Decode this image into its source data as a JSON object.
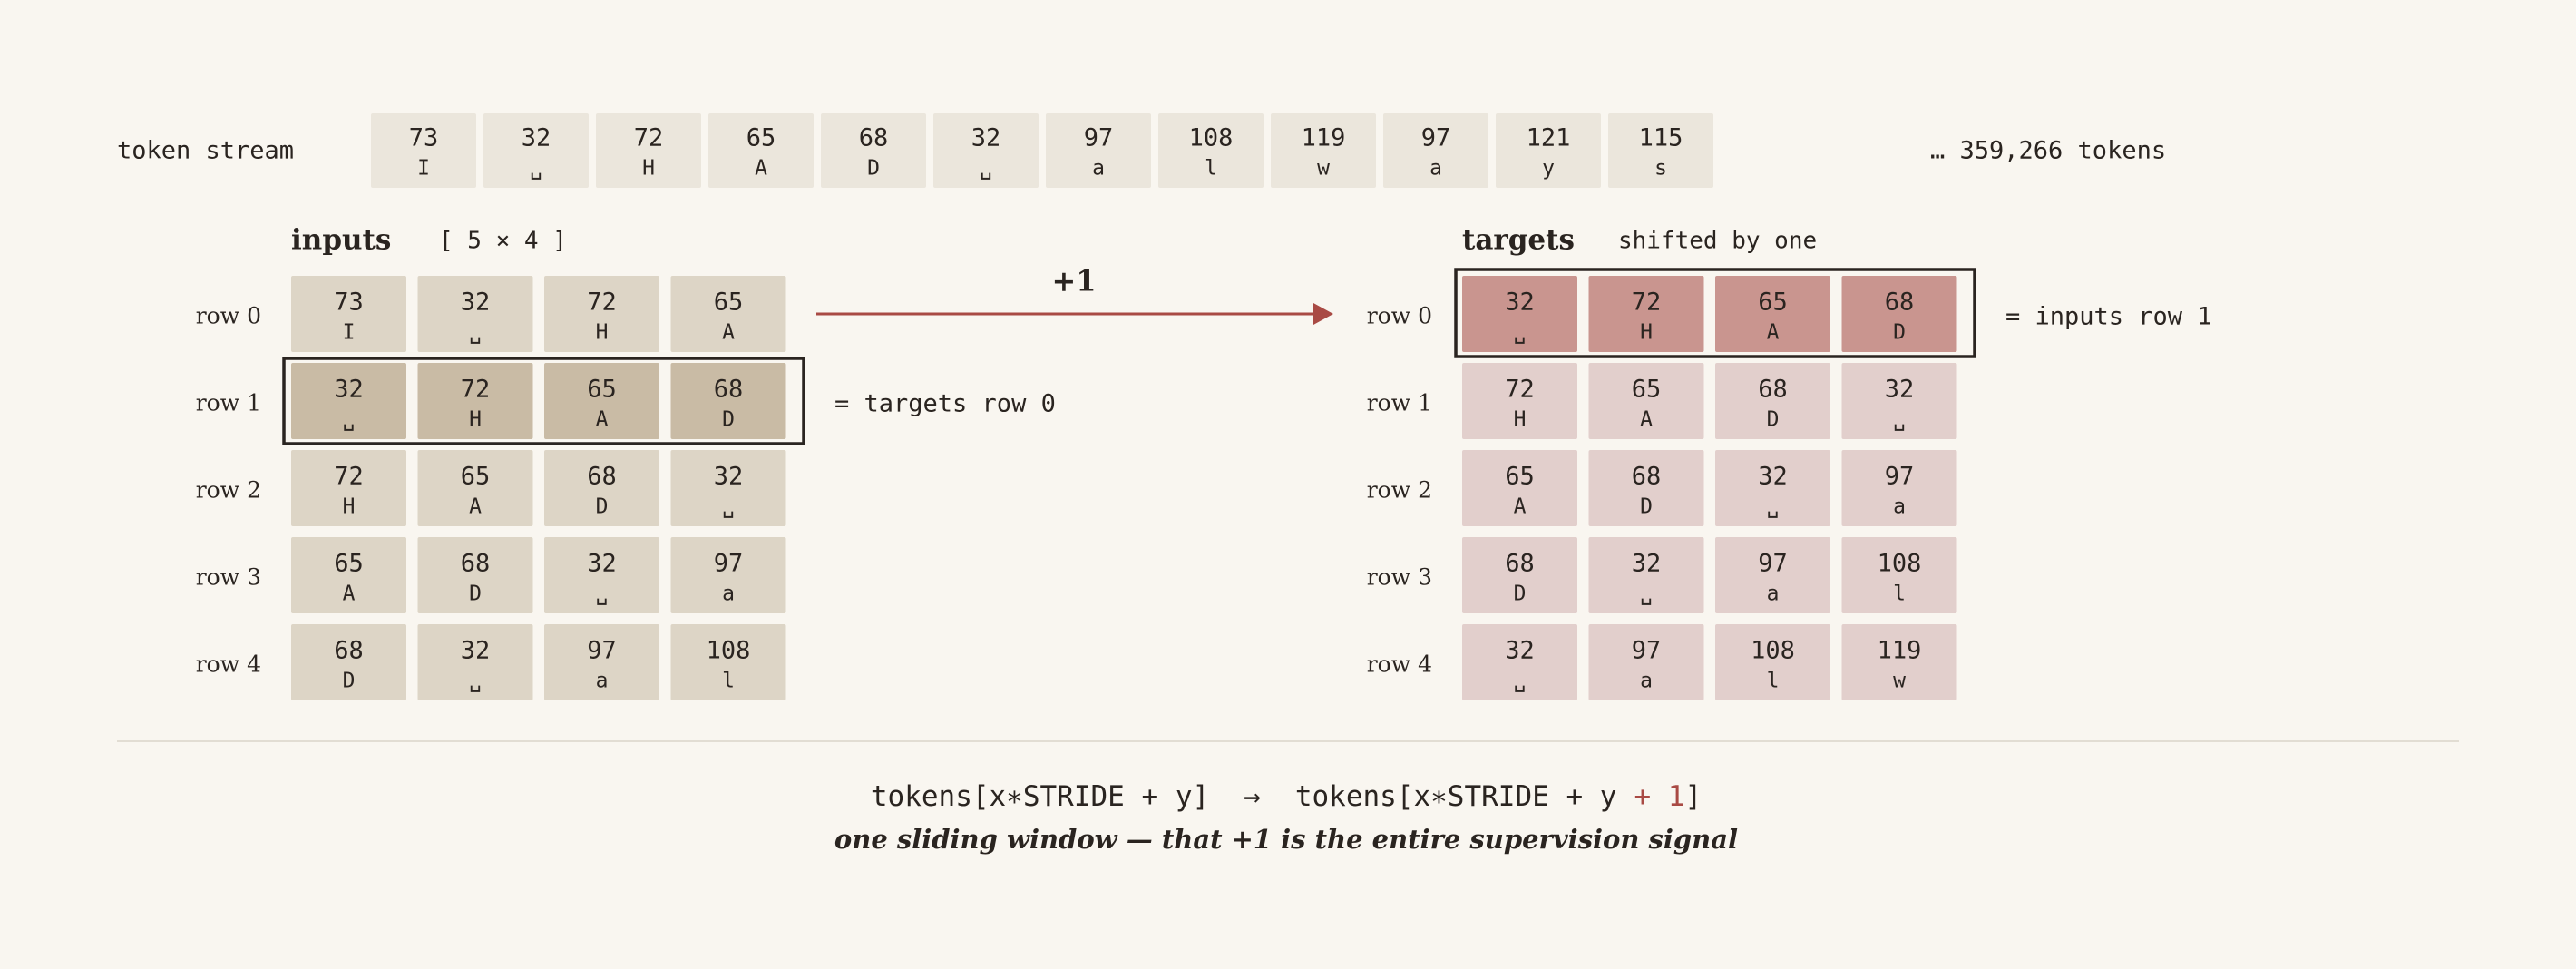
{
  "token_stream": {
    "label": "token stream",
    "tokens": [
      {
        "id": "73",
        "char": "I"
      },
      {
        "id": "32",
        "char": "␣"
      },
      {
        "id": "72",
        "char": "H"
      },
      {
        "id": "65",
        "char": "A"
      },
      {
        "id": "68",
        "char": "D"
      },
      {
        "id": "32",
        "char": "␣"
      },
      {
        "id": "97",
        "char": "a"
      },
      {
        "id": "108",
        "char": "l"
      },
      {
        "id": "119",
        "char": "w"
      },
      {
        "id": "97",
        "char": "a"
      },
      {
        "id": "121",
        "char": "y"
      },
      {
        "id": "115",
        "char": "s"
      }
    ],
    "more": "… 359,266 tokens"
  },
  "inputs": {
    "title": "inputs",
    "shape": "[ 5 × 4 ]",
    "note": "= targets row 0",
    "rows": [
      {
        "label": "row 0",
        "cells": [
          {
            "id": "73",
            "char": "I"
          },
          {
            "id": "32",
            "char": "␣"
          },
          {
            "id": "72",
            "char": "H"
          },
          {
            "id": "65",
            "char": "A"
          }
        ]
      },
      {
        "label": "row 1",
        "cells": [
          {
            "id": "32",
            "char": "␣"
          },
          {
            "id": "72",
            "char": "H"
          },
          {
            "id": "65",
            "char": "A"
          },
          {
            "id": "68",
            "char": "D"
          }
        ]
      },
      {
        "label": "row 2",
        "cells": [
          {
            "id": "72",
            "char": "H"
          },
          {
            "id": "65",
            "char": "A"
          },
          {
            "id": "68",
            "char": "D"
          },
          {
            "id": "32",
            "char": "␣"
          }
        ]
      },
      {
        "label": "row 3",
        "cells": [
          {
            "id": "65",
            "char": "A"
          },
          {
            "id": "68",
            "char": "D"
          },
          {
            "id": "32",
            "char": "␣"
          },
          {
            "id": "97",
            "char": "a"
          }
        ]
      },
      {
        "label": "row 4",
        "cells": [
          {
            "id": "68",
            "char": "D"
          },
          {
            "id": "32",
            "char": "␣"
          },
          {
            "id": "97",
            "char": "a"
          },
          {
            "id": "108",
            "char": "l"
          }
        ]
      }
    ]
  },
  "shift_label": "+1",
  "targets": {
    "title": "targets",
    "subtitle": "shifted by one",
    "note": "= inputs row 1",
    "rows": [
      {
        "label": "row 0",
        "cells": [
          {
            "id": "32",
            "char": "␣"
          },
          {
            "id": "72",
            "char": "H"
          },
          {
            "id": "65",
            "char": "A"
          },
          {
            "id": "68",
            "char": "D"
          }
        ]
      },
      {
        "label": "row 1",
        "cells": [
          {
            "id": "72",
            "char": "H"
          },
          {
            "id": "65",
            "char": "A"
          },
          {
            "id": "68",
            "char": "D"
          },
          {
            "id": "32",
            "char": "␣"
          }
        ]
      },
      {
        "label": "row 2",
        "cells": [
          {
            "id": "65",
            "char": "A"
          },
          {
            "id": "68",
            "char": "D"
          },
          {
            "id": "32",
            "char": "␣"
          },
          {
            "id": "97",
            "char": "a"
          }
        ]
      },
      {
        "label": "row 3",
        "cells": [
          {
            "id": "68",
            "char": "D"
          },
          {
            "id": "32",
            "char": "␣"
          },
          {
            "id": "97",
            "char": "a"
          },
          {
            "id": "108",
            "char": "l"
          }
        ]
      },
      {
        "label": "row 4",
        "cells": [
          {
            "id": "32",
            "char": "␣"
          },
          {
            "id": "97",
            "char": "a"
          },
          {
            "id": "108",
            "char": "l"
          },
          {
            "id": "119",
            "char": "w"
          }
        ]
      }
    ]
  },
  "formula": [
    "tokens[x∗STRIDE + y]",
    "→",
    "tokens[x∗STRIDE + y",
    "+ 1",
    "]"
  ],
  "caption": "one sliding window — that +1 is the entire supervision signal"
}
